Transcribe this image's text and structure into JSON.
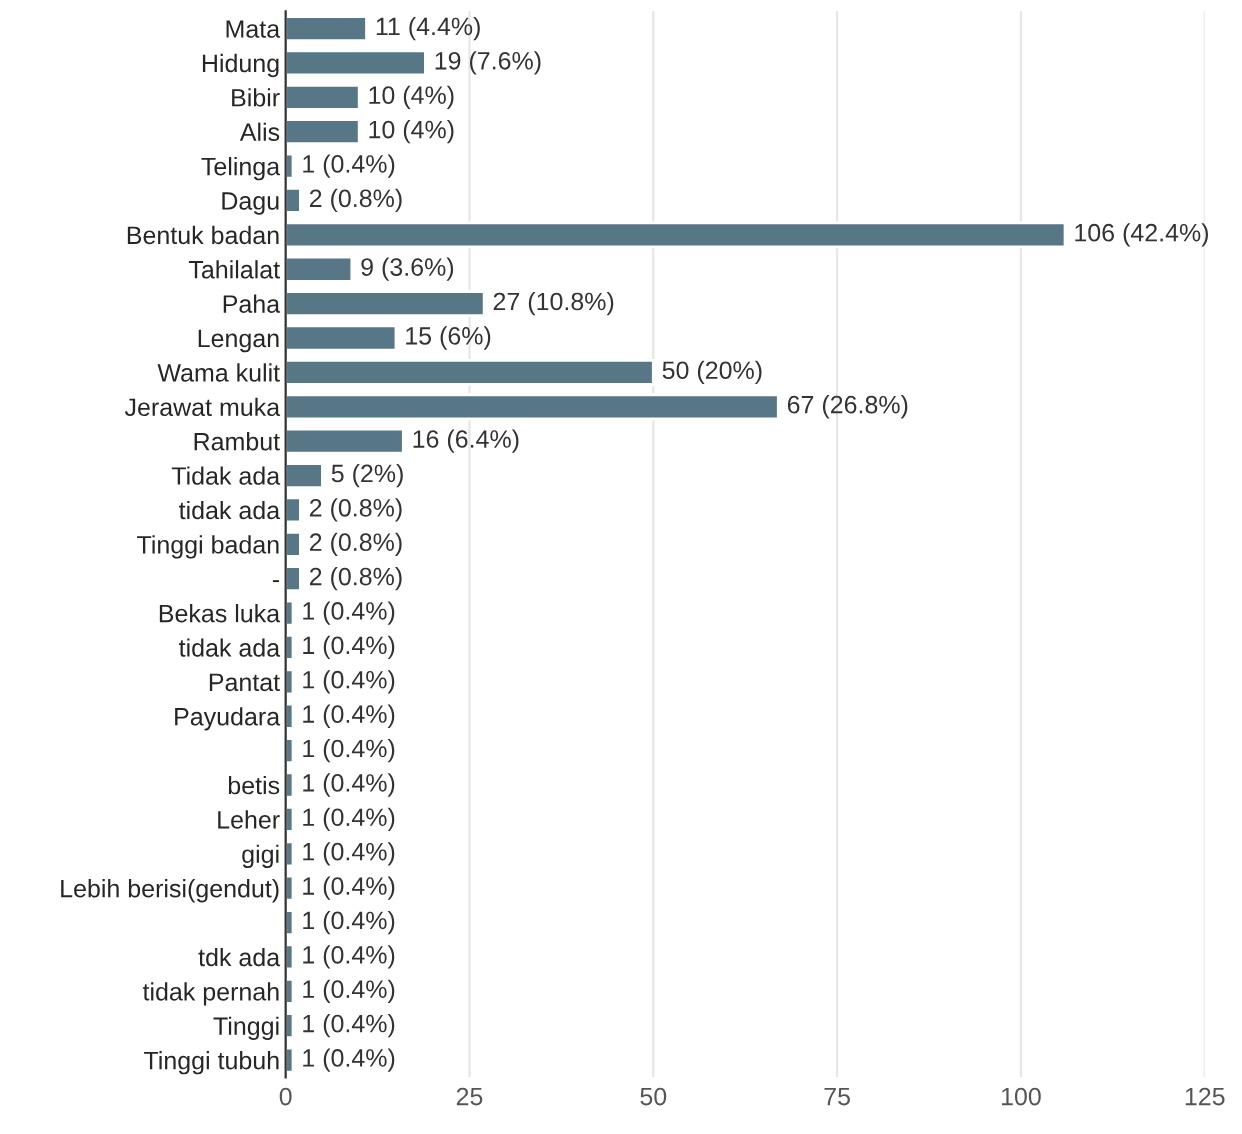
{
  "chart_data": {
    "type": "bar",
    "orientation": "horizontal",
    "categories": [
      "Mata",
      "Hidung",
      "Bibir",
      "Alis",
      "Telinga",
      "Dagu",
      "Bentuk badan",
      "Tahilalat",
      "Paha",
      "Lengan",
      "Wama kulit",
      "Jerawat muka",
      "Rambut",
      "Tidak ada",
      "tidak ada",
      "Tinggi badan",
      "-",
      "Bekas luka",
      "tidak ada",
      "Pantat",
      "Payudara",
      null,
      "betis",
      "Leher",
      "gigi",
      "Lebih berisi(gendut)",
      null,
      "tdk ada",
      "tidak pernah",
      "Tinggi",
      "Tinggi tubuh"
    ],
    "values": [
      11,
      19,
      10,
      10,
      1,
      2,
      106,
      9,
      27,
      15,
      50,
      67,
      16,
      5,
      2,
      2,
      2,
      1,
      1,
      1,
      1,
      1,
      1,
      1,
      1,
      1,
      1,
      1,
      1,
      1,
      1
    ],
    "value_labels": [
      "11 (4.4%)",
      "19 (7.6%)",
      "10 (4%)",
      "10 (4%)",
      "1 (0.4%)",
      "2 (0.8%)",
      "106 (42.4%)",
      "9 (3.6%)",
      "27 (10.8%)",
      "15 (6%)",
      "50 (20%)",
      "67 (26.8%)",
      "16 (6.4%)",
      "5 (2%)",
      "2 (0.8%)",
      "2 (0.8%)",
      "2 (0.8%)",
      "1 (0.4%)",
      "1 (0.4%)",
      "1 (0.4%)",
      "1 (0.4%)",
      "1 (0.4%)",
      "1 (0.4%)",
      "1 (0.4%)",
      "1 (0.4%)",
      "1 (0.4%)",
      "1 (0.4%)",
      "1 (0.4%)",
      "1 (0.4%)",
      "1 (0.4%)",
      "1 (0.4%)"
    ],
    "color": "#587786",
    "xlim": [
      0,
      125
    ],
    "xticks": [
      0,
      25,
      50,
      75,
      100,
      125
    ],
    "grid": "x"
  }
}
